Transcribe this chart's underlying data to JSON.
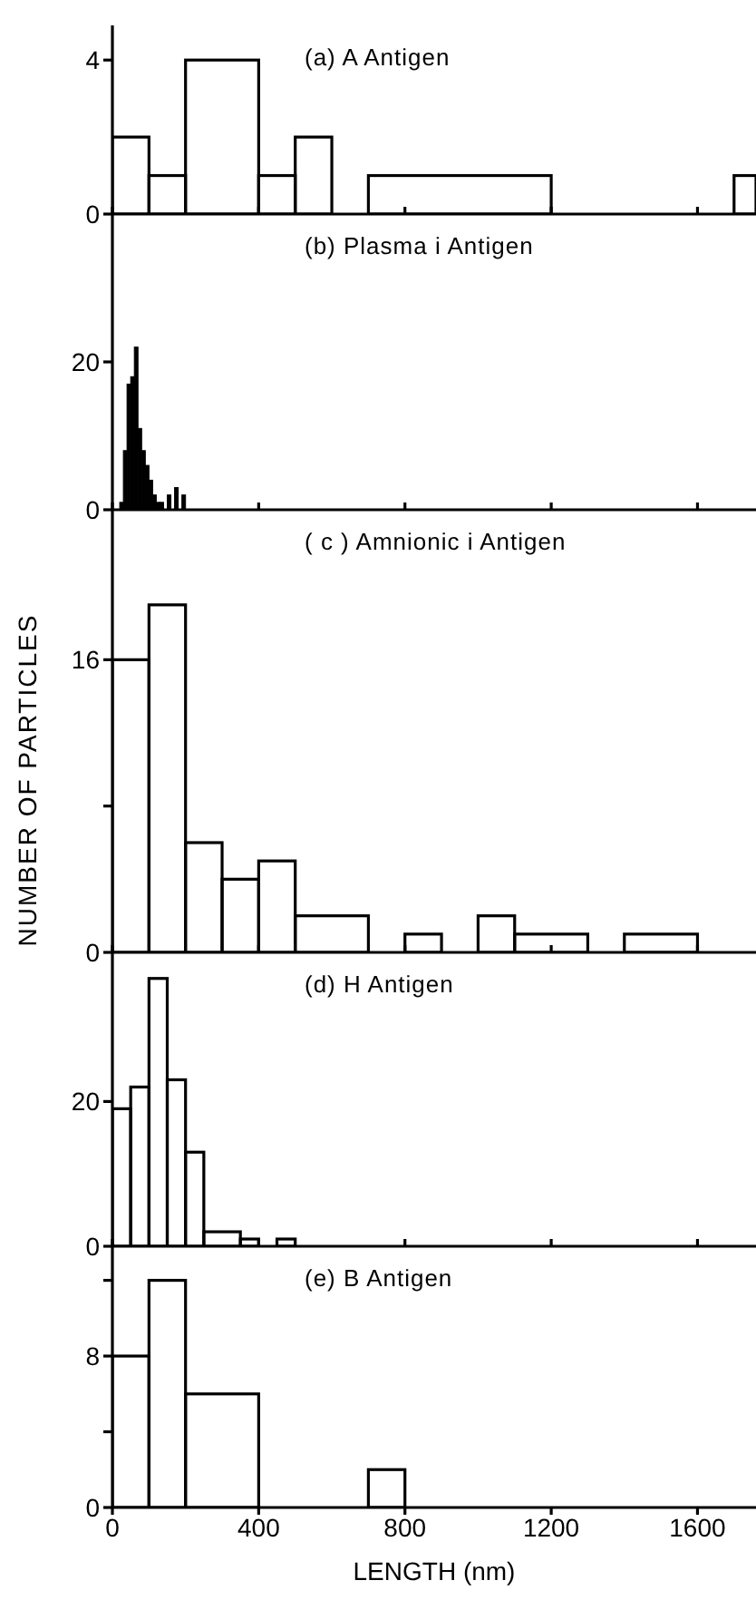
{
  "chart_data": [
    {
      "type": "histogram",
      "title": "(a) A Antigen",
      "bins": [
        0,
        100,
        200,
        400,
        500,
        600,
        700,
        1200,
        1700,
        1760
      ],
      "values": [
        2,
        1,
        4,
        1,
        2,
        0,
        1,
        0,
        1
      ],
      "xlim": [
        0,
        1760
      ],
      "xticks": [
        {
          "value": 0,
          "label": null
        },
        {
          "value": 400,
          "label": null
        },
        {
          "value": 800,
          "label": null
        },
        {
          "value": 1200,
          "label": null
        },
        {
          "value": 1600,
          "label": null
        }
      ],
      "ylim": [
        0,
        4.9
      ],
      "yticks": [
        0,
        4
      ],
      "tick_labels": "y"
    },
    {
      "type": "histogram",
      "title": "(b) Plasma i Antigen",
      "color": "#000000",
      "bins": [
        20,
        30,
        40,
        50,
        60,
        70,
        80,
        90,
        100,
        110,
        120,
        130,
        140,
        150,
        160,
        170,
        180,
        190,
        200
      ],
      "values": [
        1,
        8,
        17,
        18,
        22,
        11,
        8,
        6,
        4,
        2,
        1,
        1,
        0,
        2,
        0,
        3,
        0,
        2
      ],
      "xlim": [
        0,
        1760
      ],
      "xticks": [
        {
          "value": 0,
          "label": null
        },
        {
          "value": 400,
          "label": null
        },
        {
          "value": 800,
          "label": null
        },
        {
          "value": 1200,
          "label": null
        },
        {
          "value": 1600,
          "label": null
        }
      ],
      "ylim": [
        0,
        40
      ],
      "yticks": [
        0,
        20
      ],
      "tick_labels": "y"
    },
    {
      "type": "histogram",
      "title": "( c ) Amnionic i Antigen",
      "ylabel": "NUMBER OF PARTICLES",
      "bins": [
        0,
        100,
        200,
        300,
        400,
        500,
        700,
        800,
        900,
        1000,
        1100,
        1300,
        1400,
        1600
      ],
      "values": [
        16,
        19,
        6,
        4,
        5,
        2,
        0,
        1,
        0,
        2,
        1,
        0,
        1
      ],
      "xlim": [
        0,
        1760
      ],
      "xticks": [
        {
          "value": 0,
          "label": null
        },
        {
          "value": 400,
          "label": null
        },
        {
          "value": 800,
          "label": null
        },
        {
          "value": 1200,
          "label": null
        },
        {
          "value": 1600,
          "label": null
        }
      ],
      "ylim": [
        0,
        24.2
      ],
      "yticks": [
        0,
        {
          "value": 8,
          "label": null
        },
        16
      ],
      "tick_labels": "y"
    },
    {
      "type": "histogram",
      "title": "(d) H Antigen",
      "bins": [
        0,
        50,
        100,
        150,
        200,
        250,
        350,
        400,
        450,
        500
      ],
      "values": [
        19,
        22,
        37,
        23,
        13,
        2,
        1,
        0,
        1
      ],
      "xlim": [
        0,
        1760
      ],
      "xticks": [
        {
          "value": 0,
          "label": null
        },
        {
          "value": 400,
          "label": null
        },
        {
          "value": 800,
          "label": null
        },
        {
          "value": 1200,
          "label": null
        },
        {
          "value": 1600,
          "label": null
        }
      ],
      "ylim": [
        0,
        40.6
      ],
      "yticks": [
        0,
        20
      ],
      "tick_labels": "y"
    },
    {
      "type": "histogram",
      "title": "(e) B Antigen",
      "xlabel": "LENGTH (nm)",
      "bins": [
        0,
        100,
        200,
        400,
        700,
        800
      ],
      "values": [
        8,
        12,
        6,
        0,
        2
      ],
      "xlim": [
        0,
        1760
      ],
      "xticks": [
        0,
        400,
        800,
        1200,
        1600
      ],
      "ylim": [
        0,
        13.8
      ],
      "yticks": [
        0,
        {
          "value": 4,
          "label": null
        },
        8,
        {
          "value": 12,
          "label": null
        }
      ]
    }
  ]
}
